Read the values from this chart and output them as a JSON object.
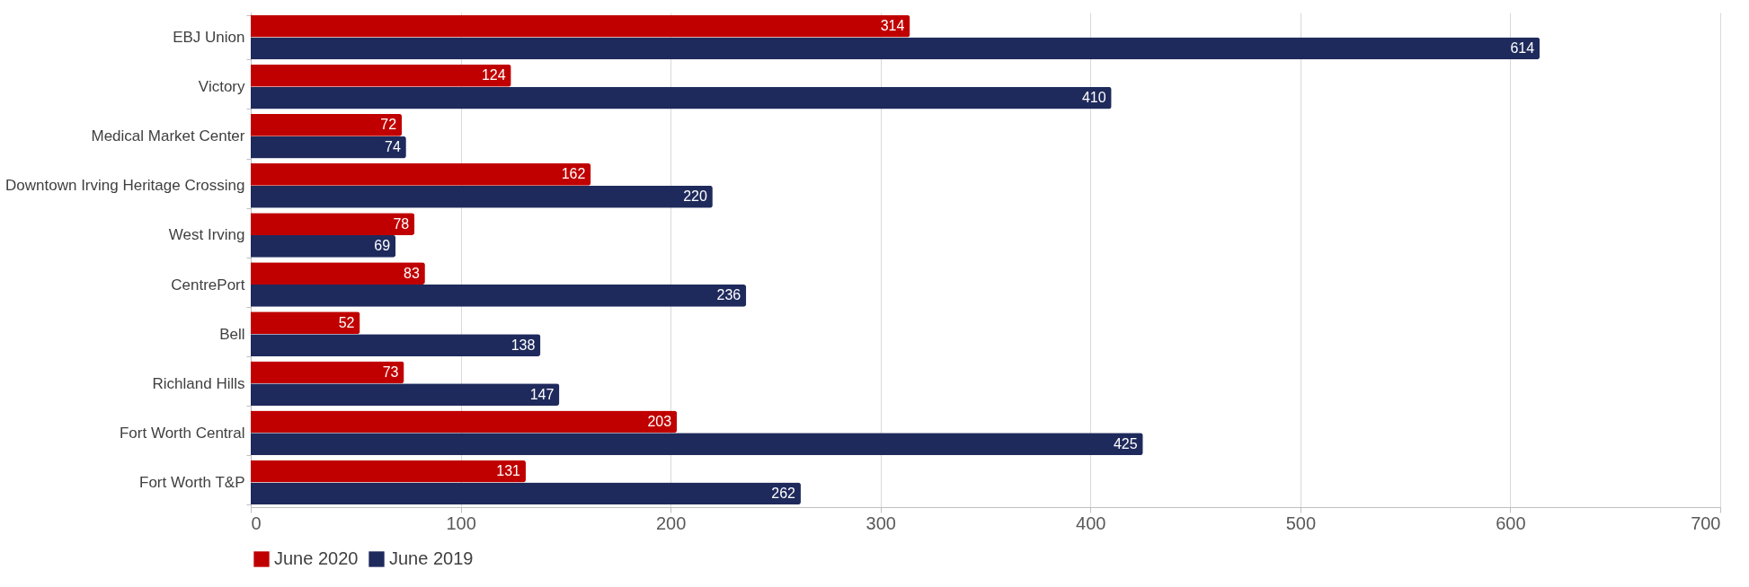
{
  "chart_data": {
    "type": "bar",
    "orientation": "horizontal",
    "categories": [
      "EBJ Union",
      "Victory",
      "Medical Market Center",
      "Downtown Irving Heritage Crossing",
      "West Irving",
      "CentrePort",
      "Bell",
      "Richland Hills",
      "Fort Worth Central",
      "Fort Worth T&P"
    ],
    "series": [
      {
        "name": "June 2020",
        "color": "#c00000",
        "values": [
          314,
          124,
          72,
          162,
          78,
          83,
          52,
          73,
          203,
          131
        ]
      },
      {
        "name": "June 2019",
        "color": "#1f2a5c",
        "values": [
          614,
          410,
          74,
          220,
          69,
          236,
          138,
          147,
          425,
          262
        ]
      }
    ],
    "xlim": [
      0,
      700
    ],
    "xticks": [
      0,
      100,
      200,
      300,
      400,
      500,
      600,
      700
    ],
    "grid": "x",
    "legend": "bottom",
    "data_labels": true
  }
}
